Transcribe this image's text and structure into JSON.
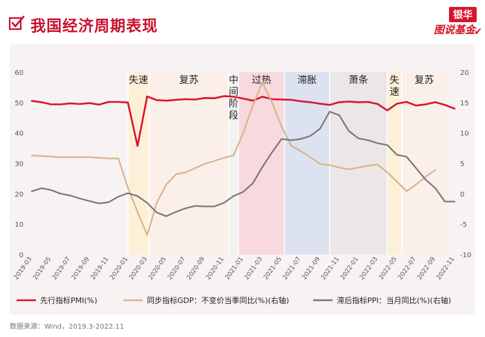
{
  "header": {
    "title": "我国经济周期表现",
    "logo_top": "银华",
    "logo_bottom": "图说基金"
  },
  "footer": {
    "source": "数据来源：Wind，2019.3-2022.11"
  },
  "chart_data": {
    "type": "line",
    "x": [
      "2019-03",
      "2019-04",
      "2019-05",
      "2019-06",
      "2019-07",
      "2019-08",
      "2019-09",
      "2019-10",
      "2019-11",
      "2019-12",
      "2020-01",
      "2020-02",
      "2020-03",
      "2020-04",
      "2020-05",
      "2020-06",
      "2020-07",
      "2020-08",
      "2020-09",
      "2020-10",
      "2020-11",
      "2020-12",
      "2021-01",
      "2021-02",
      "2021-03",
      "2021-04",
      "2021-05",
      "2021-06",
      "2021-07",
      "2021-08",
      "2021-09",
      "2021-10",
      "2021-11",
      "2021-12",
      "2022-01",
      "2022-02",
      "2022-03",
      "2022-04",
      "2022-05",
      "2022-06",
      "2022-07",
      "2022-08",
      "2022-09",
      "2022-10",
      "2022-11"
    ],
    "tick_labels": [
      "2019-03",
      "2019-05",
      "2019-07",
      "2019-09",
      "2019-11",
      "2020-01",
      "2020-03",
      "2020-05",
      "2020-07",
      "2020-09",
      "2020-11",
      "2021-01",
      "2021-03",
      "2021-05",
      "2021-07",
      "2021-09",
      "2021-11",
      "2022-01",
      "2022-03",
      "2022-05",
      "2022-07",
      "2022-09",
      "2022-11"
    ],
    "y_left": {
      "min": 0,
      "max": 60,
      "ticks": [
        "0",
        "10",
        "20",
        "30",
        "40",
        "50",
        "60"
      ]
    },
    "y_right": {
      "min": -10,
      "max": 20,
      "ticks": [
        "-10",
        "-5",
        "0",
        "5",
        "10",
        "15",
        "20"
      ]
    },
    "series": [
      {
        "name": "先行指标PMI(%)",
        "axis": "left",
        "color": "#d7142f",
        "values": [
          50.5,
          50.1,
          49.4,
          49.4,
          49.7,
          49.5,
          49.8,
          49.3,
          50.2,
          50.2,
          50.0,
          35.7,
          52.0,
          50.8,
          50.6,
          50.9,
          51.1,
          51.0,
          51.5,
          51.4,
          52.1,
          51.9,
          51.3,
          50.6,
          51.9,
          51.1,
          51.0,
          50.9,
          50.4,
          50.1,
          49.6,
          49.2,
          50.1,
          50.3,
          50.1,
          50.2,
          49.5,
          47.4,
          49.6,
          50.2,
          49.0,
          49.4,
          50.1,
          49.2,
          48.0
        ]
      },
      {
        "name": "同步指标GDP：不变价当季同比(%)(右轴)",
        "axis": "right",
        "color": "#d9b48a",
        "values": [
          6.3,
          6.2,
          6.1,
          6.0,
          6.0,
          6.0,
          6.0,
          5.9,
          5.8,
          5.8,
          1.0,
          -3.0,
          -6.8,
          -1.5,
          1.5,
          3.2,
          3.5,
          4.2,
          4.9,
          5.4,
          5.9,
          6.3,
          10.0,
          14.5,
          18.3,
          15.0,
          11.0,
          7.9,
          7.0,
          6.0,
          4.9,
          4.7,
          4.3,
          4.0,
          4.3,
          4.6,
          4.8,
          3.5,
          2.0,
          0.4,
          1.5,
          2.8,
          3.9,
          null,
          null
        ]
      },
      {
        "name": "滞后指标PPI：当月同比(%)(右轴)",
        "axis": "right",
        "color": "#787878",
        "values": [
          0.4,
          0.9,
          0.6,
          0.0,
          -0.3,
          -0.8,
          -1.2,
          -1.6,
          -1.4,
          -0.5,
          0.1,
          -0.4,
          -1.5,
          -3.1,
          -3.7,
          -3.0,
          -2.4,
          -2.0,
          -2.1,
          -2.1,
          -1.5,
          -0.4,
          0.3,
          1.7,
          4.4,
          6.8,
          9.0,
          8.8,
          9.0,
          9.5,
          10.7,
          13.5,
          12.9,
          10.3,
          9.1,
          8.8,
          8.3,
          8.0,
          6.4,
          6.1,
          4.2,
          2.3,
          0.9,
          -1.3,
          -1.3
        ]
      }
    ],
    "phases": [
      {
        "label": "失速",
        "start": 10,
        "end": 12.2,
        "color": "#fdefd6"
      },
      {
        "label": "复苏",
        "start": 12.2,
        "end": 20.5,
        "color": "#fbeee9"
      },
      {
        "label": "中间阶段",
        "start": 20.5,
        "end": 21.5,
        "color": "#f2f2f2"
      },
      {
        "label": "过热",
        "start": 21.5,
        "end": 26.3,
        "color": "#f6d6dc"
      },
      {
        "label": "滞胀",
        "start": 26.3,
        "end": 31,
        "color": "#d9e0ef"
      },
      {
        "label": "萧条",
        "start": 31,
        "end": 37,
        "color": "#e9e5e5"
      },
      {
        "label": "失速",
        "start": 37,
        "end": 38.5,
        "color": "#fdefd6"
      },
      {
        "label": "复苏",
        "start": 38.5,
        "end": 43.2,
        "color": "#fbeee9"
      }
    ]
  }
}
